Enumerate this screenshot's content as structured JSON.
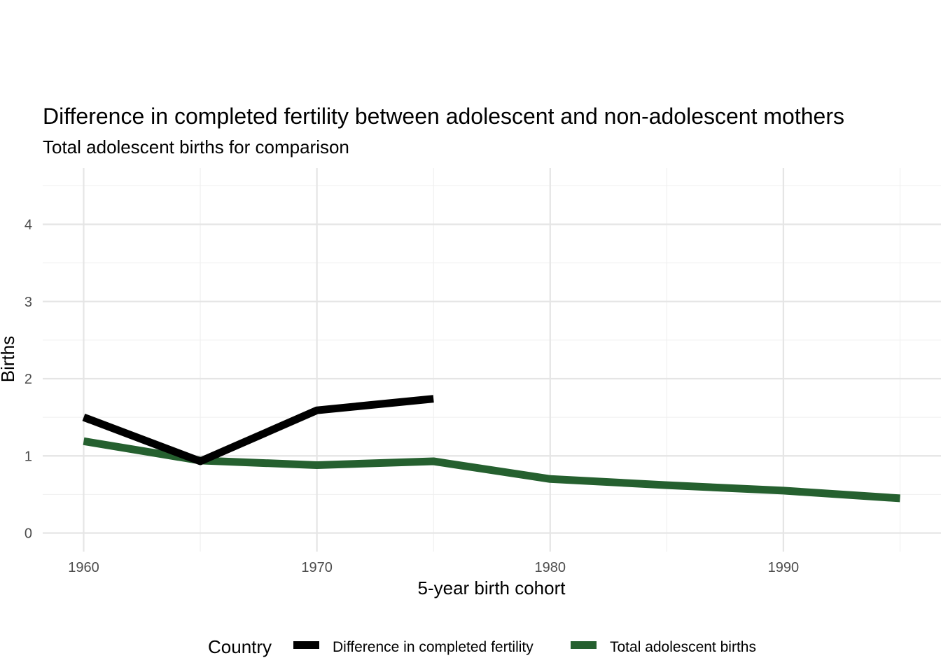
{
  "chart_data": {
    "type": "line",
    "title": "Difference in completed fertility between adolescent and non-adolescent mothers",
    "subtitle": "Total adolescent births for comparison",
    "xlabel": "5-year birth cohort",
    "ylabel": "Births",
    "xlim": [
      1958.2,
      1996.8
    ],
    "ylim": [
      0,
      4.6
    ],
    "x_ticks": [
      1960,
      1970,
      1980,
      1990
    ],
    "y_ticks": [
      0,
      1,
      2,
      3,
      4
    ],
    "grid": true,
    "legend": {
      "title": "Country",
      "position": "bottom"
    },
    "series": [
      {
        "name": "Difference in completed fertility",
        "color": "#000000",
        "x": [
          1960,
          1965,
          1970,
          1975
        ],
        "y": [
          1.5,
          0.93,
          1.59,
          1.74
        ]
      },
      {
        "name": "Total adolescent births",
        "color": "#25602f",
        "x": [
          1960,
          1965,
          1970,
          1975,
          1980,
          1985,
          1990,
          1995
        ],
        "y": [
          1.19,
          0.94,
          0.88,
          0.93,
          0.7,
          0.62,
          0.55,
          0.45
        ]
      }
    ]
  }
}
